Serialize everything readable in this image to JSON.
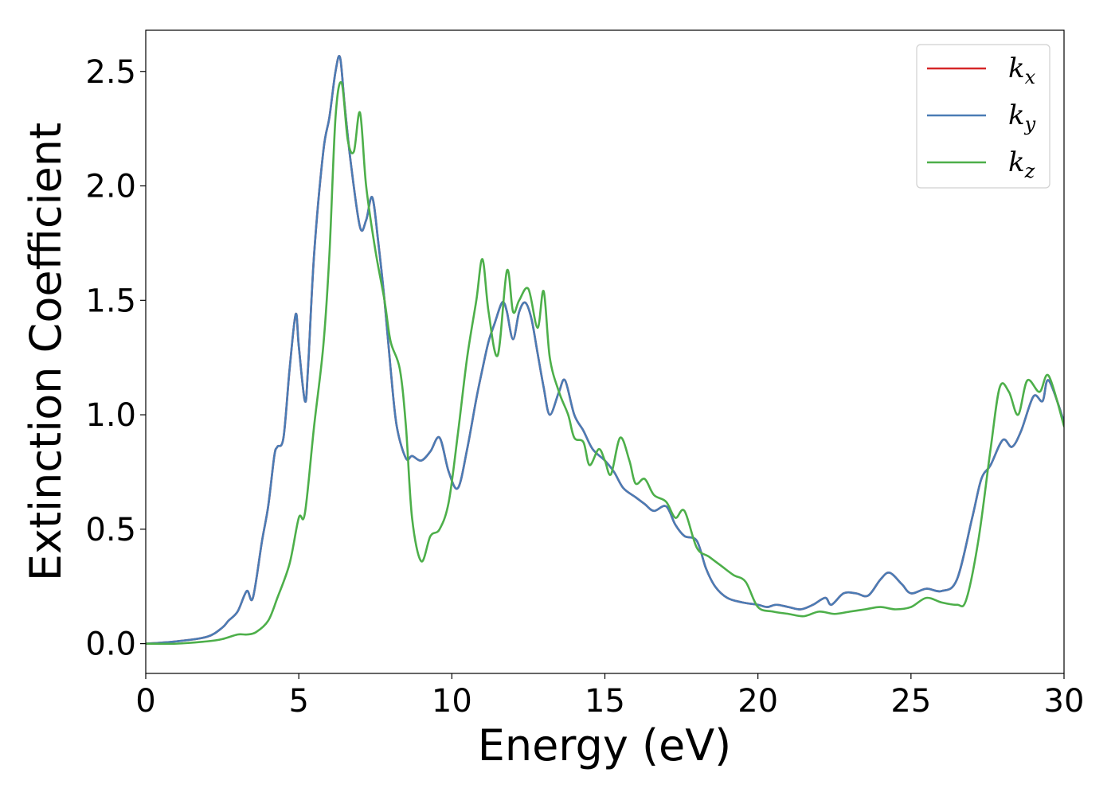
{
  "chart_data": {
    "type": "line",
    "title": "",
    "xlabel": "Energy (eV)",
    "ylabel": "Extinction Coefficient",
    "xlim": [
      0,
      30
    ],
    "ylim": [
      -0.13,
      2.68
    ],
    "xticks": [
      0,
      5,
      10,
      15,
      20,
      25,
      30
    ],
    "yticks": [
      0.0,
      0.5,
      1.0,
      1.5,
      2.0,
      2.5
    ],
    "xtick_labels": [
      "0",
      "5",
      "10",
      "15",
      "20",
      "25",
      "30"
    ],
    "ytick_labels": [
      "0.0",
      "0.5",
      "1.0",
      "1.5",
      "2.0",
      "2.5"
    ],
    "grid": false,
    "legend_position": "top-right",
    "series": [
      {
        "name": "k_x",
        "label_main": "k",
        "label_sub": "x",
        "color": "#d62728",
        "x": [
          0,
          1,
          2,
          2.5,
          2.7,
          3.0,
          3.3,
          3.5,
          3.8,
          4.0,
          4.2,
          4.3,
          4.5,
          4.7,
          4.9,
          5.0,
          5.2,
          5.3,
          5.5,
          5.8,
          6.0,
          6.2,
          6.35,
          6.5,
          6.7,
          7.0,
          7.2,
          7.4,
          7.6,
          7.8,
          8.0,
          8.2,
          8.5,
          8.7,
          9.0,
          9.3,
          9.6,
          9.9,
          10.2,
          10.5,
          10.8,
          11.0,
          11.2,
          11.4,
          11.6,
          11.7,
          11.8,
          12.0,
          12.2,
          12.4,
          12.6,
          12.8,
          13.0,
          13.2,
          13.5,
          13.7,
          14.0,
          14.3,
          14.6,
          15.0,
          15.3,
          15.6,
          16.0,
          16.3,
          16.6,
          17.0,
          17.3,
          17.6,
          18.0,
          18.3,
          18.6,
          19.0,
          19.5,
          20.0,
          20.3,
          20.6,
          21.0,
          21.4,
          21.8,
          22.2,
          22.4,
          22.8,
          23.2,
          23.6,
          24.0,
          24.3,
          24.7,
          25.0,
          25.5,
          26.0,
          26.5,
          27.0,
          27.3,
          27.6,
          28.0,
          28.3,
          28.6,
          29.0,
          29.3,
          29.5,
          30.0
        ],
        "y": [
          0.0,
          0.01,
          0.03,
          0.07,
          0.1,
          0.14,
          0.23,
          0.2,
          0.45,
          0.6,
          0.82,
          0.86,
          0.9,
          1.2,
          1.44,
          1.3,
          1.06,
          1.2,
          1.7,
          2.15,
          2.3,
          2.5,
          2.56,
          2.35,
          2.1,
          1.82,
          1.85,
          1.95,
          1.75,
          1.5,
          1.2,
          0.95,
          0.81,
          0.82,
          0.8,
          0.84,
          0.9,
          0.75,
          0.68,
          0.85,
          1.07,
          1.2,
          1.32,
          1.4,
          1.48,
          1.49,
          1.45,
          1.33,
          1.45,
          1.49,
          1.42,
          1.27,
          1.12,
          1.0,
          1.1,
          1.15,
          1.0,
          0.93,
          0.85,
          0.8,
          0.75,
          0.68,
          0.64,
          0.61,
          0.58,
          0.6,
          0.52,
          0.47,
          0.45,
          0.33,
          0.25,
          0.2,
          0.18,
          0.17,
          0.16,
          0.17,
          0.16,
          0.15,
          0.17,
          0.2,
          0.17,
          0.22,
          0.22,
          0.21,
          0.28,
          0.31,
          0.26,
          0.22,
          0.24,
          0.23,
          0.28,
          0.55,
          0.72,
          0.78,
          0.89,
          0.86,
          0.93,
          1.08,
          1.06,
          1.15,
          0.97
        ]
      },
      {
        "name": "k_y",
        "label_main": "k",
        "label_sub": "y",
        "color": "#4a7cb5",
        "x": [
          0,
          1,
          2,
          2.5,
          2.7,
          3.0,
          3.3,
          3.5,
          3.8,
          4.0,
          4.2,
          4.3,
          4.5,
          4.7,
          4.9,
          5.0,
          5.2,
          5.3,
          5.5,
          5.8,
          6.0,
          6.2,
          6.35,
          6.5,
          6.7,
          7.0,
          7.2,
          7.4,
          7.6,
          7.8,
          8.0,
          8.2,
          8.5,
          8.7,
          9.0,
          9.3,
          9.6,
          9.9,
          10.2,
          10.5,
          10.8,
          11.0,
          11.2,
          11.4,
          11.6,
          11.7,
          11.8,
          12.0,
          12.2,
          12.4,
          12.6,
          12.8,
          13.0,
          13.2,
          13.5,
          13.7,
          14.0,
          14.3,
          14.6,
          15.0,
          15.3,
          15.6,
          16.0,
          16.3,
          16.6,
          17.0,
          17.3,
          17.6,
          18.0,
          18.3,
          18.6,
          19.0,
          19.5,
          20.0,
          20.3,
          20.6,
          21.0,
          21.4,
          21.8,
          22.2,
          22.4,
          22.8,
          23.2,
          23.6,
          24.0,
          24.3,
          24.7,
          25.0,
          25.5,
          26.0,
          26.5,
          27.0,
          27.3,
          27.6,
          28.0,
          28.3,
          28.6,
          29.0,
          29.3,
          29.5,
          30.0
        ],
        "y": [
          0.0,
          0.01,
          0.03,
          0.07,
          0.1,
          0.14,
          0.23,
          0.2,
          0.45,
          0.6,
          0.82,
          0.86,
          0.9,
          1.2,
          1.44,
          1.3,
          1.06,
          1.2,
          1.7,
          2.15,
          2.3,
          2.5,
          2.56,
          2.35,
          2.1,
          1.82,
          1.85,
          1.95,
          1.75,
          1.5,
          1.2,
          0.95,
          0.81,
          0.82,
          0.8,
          0.84,
          0.9,
          0.75,
          0.68,
          0.85,
          1.07,
          1.2,
          1.32,
          1.4,
          1.48,
          1.49,
          1.45,
          1.33,
          1.45,
          1.49,
          1.42,
          1.27,
          1.12,
          1.0,
          1.1,
          1.15,
          1.0,
          0.93,
          0.85,
          0.8,
          0.75,
          0.68,
          0.64,
          0.61,
          0.58,
          0.6,
          0.52,
          0.47,
          0.45,
          0.33,
          0.25,
          0.2,
          0.18,
          0.17,
          0.16,
          0.17,
          0.16,
          0.15,
          0.17,
          0.2,
          0.17,
          0.22,
          0.22,
          0.21,
          0.28,
          0.31,
          0.26,
          0.22,
          0.24,
          0.23,
          0.28,
          0.55,
          0.72,
          0.78,
          0.89,
          0.86,
          0.93,
          1.08,
          1.06,
          1.15,
          0.97
        ]
      },
      {
        "name": "k_z",
        "label_main": "k",
        "label_sub": "z",
        "color": "#4daf4a",
        "x": [
          0,
          1,
          2,
          2.5,
          3.0,
          3.3,
          3.6,
          4.0,
          4.3,
          4.7,
          5.0,
          5.2,
          5.5,
          5.8,
          6.0,
          6.2,
          6.4,
          6.6,
          6.8,
          7.0,
          7.2,
          7.5,
          7.8,
          8.0,
          8.3,
          8.5,
          8.7,
          9.0,
          9.3,
          9.6,
          9.9,
          10.2,
          10.5,
          10.8,
          11.0,
          11.2,
          11.5,
          11.8,
          12.0,
          12.2,
          12.5,
          12.8,
          13.0,
          13.2,
          13.5,
          13.8,
          14.0,
          14.3,
          14.5,
          14.8,
          15.0,
          15.2,
          15.5,
          15.8,
          16.0,
          16.3,
          16.6,
          17.0,
          17.3,
          17.6,
          18.0,
          18.4,
          18.8,
          19.2,
          19.6,
          20.0,
          20.5,
          21.0,
          21.5,
          22.0,
          22.5,
          23.0,
          23.5,
          24.0,
          24.5,
          25.0,
          25.5,
          26.0,
          26.5,
          26.8,
          27.2,
          27.6,
          27.9,
          28.2,
          28.5,
          28.8,
          29.2,
          29.5,
          30.0
        ],
        "y": [
          0.0,
          0.0,
          0.01,
          0.02,
          0.04,
          0.04,
          0.05,
          0.1,
          0.2,
          0.35,
          0.55,
          0.57,
          0.95,
          1.3,
          1.7,
          2.3,
          2.45,
          2.2,
          2.15,
          2.32,
          2.0,
          1.72,
          1.5,
          1.32,
          1.2,
          0.95,
          0.55,
          0.36,
          0.47,
          0.5,
          0.62,
          0.92,
          1.25,
          1.5,
          1.68,
          1.45,
          1.26,
          1.63,
          1.45,
          1.5,
          1.55,
          1.38,
          1.54,
          1.25,
          1.1,
          1.0,
          0.9,
          0.88,
          0.78,
          0.85,
          0.8,
          0.74,
          0.9,
          0.8,
          0.7,
          0.72,
          0.65,
          0.62,
          0.55,
          0.58,
          0.42,
          0.38,
          0.34,
          0.3,
          0.27,
          0.16,
          0.14,
          0.13,
          0.12,
          0.14,
          0.13,
          0.14,
          0.15,
          0.16,
          0.15,
          0.16,
          0.2,
          0.18,
          0.17,
          0.19,
          0.45,
          0.85,
          1.12,
          1.1,
          1.0,
          1.15,
          1.1,
          1.17,
          0.95
        ]
      }
    ]
  }
}
